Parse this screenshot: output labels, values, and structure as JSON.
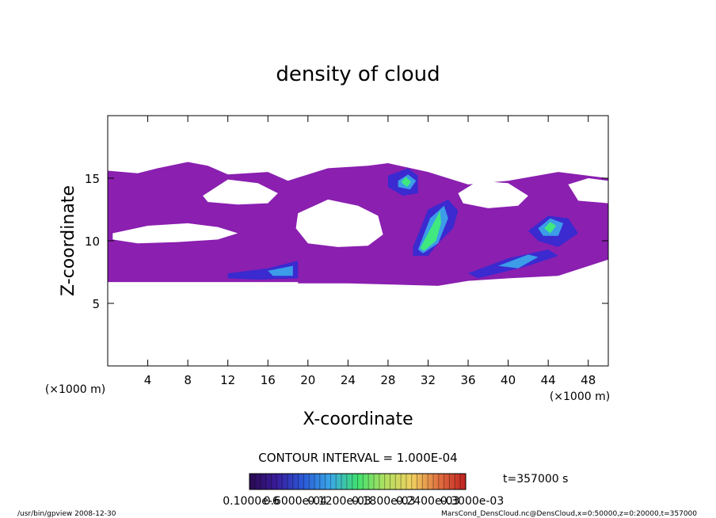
{
  "chart_data": {
    "type": "contour",
    "title": "density of cloud",
    "xlabel": "X-coordinate",
    "ylabel": "Z-coordinate",
    "xunit": "(×1000 m)",
    "xlim": [
      0,
      50
    ],
    "ylim": [
      0,
      20
    ],
    "xticks": [
      4,
      8,
      12,
      16,
      20,
      24,
      28,
      32,
      36,
      40,
      44,
      48
    ],
    "yticks": [
      5,
      10,
      15
    ],
    "contour_interval": "CONTOUR INTERVAL = 1.000E-04",
    "time_label": "t=357000 s",
    "footer_left": "/usr/bin/gpview   2008-12-30",
    "footer_right": "MarsCond_DensCloud.nc@DensCloud,x=0:50000,z=0:20000,t=357000",
    "colorbar_colors": [
      "#2a0a50",
      "#3a1c9c",
      "#2a5ad8",
      "#3aa8e8",
      "#40e070",
      "#b0e060",
      "#f0d060",
      "#e07040",
      "#c02020"
    ],
    "colorbar_labels": [
      "0.1000e-6",
      "0.6000e-04",
      "0.1200e-03",
      "0.1800e-03",
      "0.2400e-03",
      "0.3000e-03"
    ],
    "regions": [
      {
        "color": "#8a1fb0",
        "x": [
          0,
          3,
          5,
          8,
          10,
          12,
          16,
          18,
          22,
          26,
          28,
          32,
          36,
          40,
          45,
          50,
          50,
          45,
          40,
          36,
          33,
          24,
          19,
          19,
          0
        ],
        "z": [
          15.6,
          15.4,
          15.8,
          16.3,
          16,
          15.3,
          15.5,
          14.8,
          15.8,
          16,
          16.2,
          15.5,
          14.5,
          14.8,
          15.5,
          15,
          8.5,
          7.2,
          7,
          6.8,
          6.4,
          6.6,
          6.6,
          6.7,
          6.7
        ]
      },
      {
        "color": "#ffffff",
        "x": [
          19,
          22,
          25,
          27,
          27.5,
          26,
          23,
          20,
          18.8
        ],
        "z": [
          12.2,
          13.3,
          12.8,
          12,
          10.5,
          9.6,
          9.5,
          9.8,
          11
        ]
      },
      {
        "color": "#ffffff",
        "x": [
          0.5,
          4,
          8,
          11,
          13,
          11,
          7,
          3,
          0.5
        ],
        "z": [
          10.6,
          11.2,
          11.4,
          11.1,
          10.6,
          10.1,
          9.9,
          9.8,
          10.1
        ]
      },
      {
        "color": "#ffffff",
        "x": [
          9.5,
          12,
          15,
          17,
          16,
          13,
          10
        ],
        "z": [
          13.6,
          14.9,
          14.6,
          13.8,
          13,
          12.9,
          13.1
        ]
      },
      {
        "color": "#ffffff",
        "x": [
          35,
          37,
          40,
          42,
          41,
          38,
          35.5
        ],
        "z": [
          13.8,
          14.8,
          14.6,
          13.6,
          12.8,
          12.6,
          13
        ]
      },
      {
        "color": "#ffffff",
        "x": [
          46,
          48,
          50,
          50,
          47
        ],
        "z": [
          14.5,
          15,
          14.8,
          13,
          13.2
        ]
      },
      {
        "color": "#3a2ad0",
        "x": [
          28,
          30,
          31,
          31,
          29.5,
          28
        ],
        "z": [
          15.2,
          15.8,
          15.2,
          13.8,
          13.6,
          14.3
        ]
      },
      {
        "color": "#3a2ad0",
        "x": [
          30.5,
          32,
          34,
          35,
          34.5,
          33,
          32,
          30.5
        ],
        "z": [
          9.5,
          12.5,
          13.3,
          12.4,
          11,
          9.8,
          8.8,
          8.8
        ]
      },
      {
        "color": "#3a2ad0",
        "x": [
          42,
          44,
          46,
          47,
          45,
          43
        ],
        "z": [
          10.8,
          12,
          11.8,
          10.6,
          9.5,
          10
        ]
      },
      {
        "color": "#3a2ad0",
        "x": [
          12,
          16,
          19,
          19,
          15,
          12
        ],
        "z": [
          7.4,
          7.8,
          8.4,
          7,
          6.9,
          7
        ]
      },
      {
        "color": "#3a2ad0",
        "x": [
          36,
          40,
          44,
          45,
          42,
          37
        ],
        "z": [
          7.4,
          8.6,
          9.3,
          8.8,
          8,
          7
        ]
      },
      {
        "color": "#3c9ce8",
        "x": [
          29,
          30,
          30.8,
          30.2,
          29
        ],
        "z": [
          14.8,
          15.3,
          14.8,
          14.1,
          14.3
        ]
      },
      {
        "color": "#3c9ce8",
        "x": [
          31,
          32.2,
          33.6,
          34,
          33,
          31.5
        ],
        "z": [
          9.3,
          11.8,
          12.8,
          11.8,
          9.8,
          9
        ]
      },
      {
        "color": "#3c9ce8",
        "x": [
          43,
          44.2,
          45.5,
          45,
          43.5
        ],
        "z": [
          11,
          11.8,
          11.4,
          10.4,
          10.4
        ]
      },
      {
        "color": "#3c9ce8",
        "x": [
          16,
          18.5,
          18.5,
          16.5
        ],
        "z": [
          7.6,
          8,
          7.2,
          7.2
        ]
      },
      {
        "color": "#3c9ce8",
        "x": [
          39,
          42,
          43,
          41
        ],
        "z": [
          8,
          8.9,
          8.7,
          7.8
        ]
      },
      {
        "color": "#40e880",
        "x": [
          29.3,
          29.8,
          30.3,
          29.9
        ],
        "z": [
          14.7,
          15.1,
          14.7,
          14.3
        ]
      },
      {
        "color": "#40e880",
        "x": [
          31.2,
          32.4,
          33.2,
          33.3,
          32.8,
          31.6
        ],
        "z": [
          9.4,
          11.2,
          12.4,
          11.4,
          10,
          9.2
        ]
      },
      {
        "color": "#40e880",
        "x": [
          43.6,
          44.2,
          44.8,
          44.2
        ],
        "z": [
          11,
          11.5,
          11.2,
          10.6
        ]
      }
    ]
  }
}
